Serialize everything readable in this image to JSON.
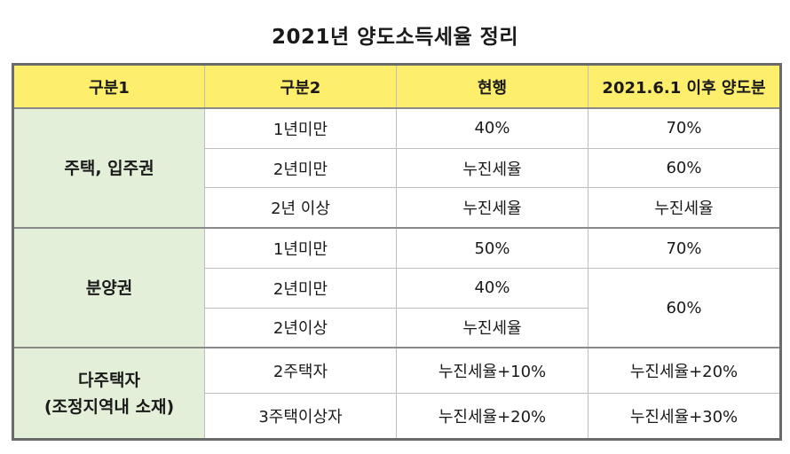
{
  "title": "2021년 양도소득세율 정리",
  "headers": [
    "구분1",
    "구분2",
    "현행",
    "2021.6.1 이후 양도분"
  ],
  "groups": [
    {
      "name": "주택, 입주권",
      "rows": [
        {
          "sub": "1년미만",
          "current": "40%",
          "after": "70%"
        },
        {
          "sub": "2년미만",
          "current": "누진세율",
          "after": "60%"
        },
        {
          "sub": "2년 이상",
          "current": "누진세율",
          "after": "누진세율"
        }
      ]
    },
    {
      "name": "분양권",
      "rows": [
        {
          "sub": "1년미만",
          "current": "50%",
          "after": "70%"
        },
        {
          "sub": "2년미만",
          "current": "40%",
          "after": "60%"
        },
        {
          "sub": "2년이상",
          "current": "누진세율"
        }
      ]
    },
    {
      "name_line1": "다주택자",
      "name_line2": "(조정지역내 소재)",
      "rows": [
        {
          "sub": "2주택자",
          "current": "누진세율+10%",
          "after": "누진세율+20%"
        },
        {
          "sub": "3주택이상자",
          "current": "누진세율+20%",
          "after": "누진세율+30%"
        }
      ]
    }
  ]
}
